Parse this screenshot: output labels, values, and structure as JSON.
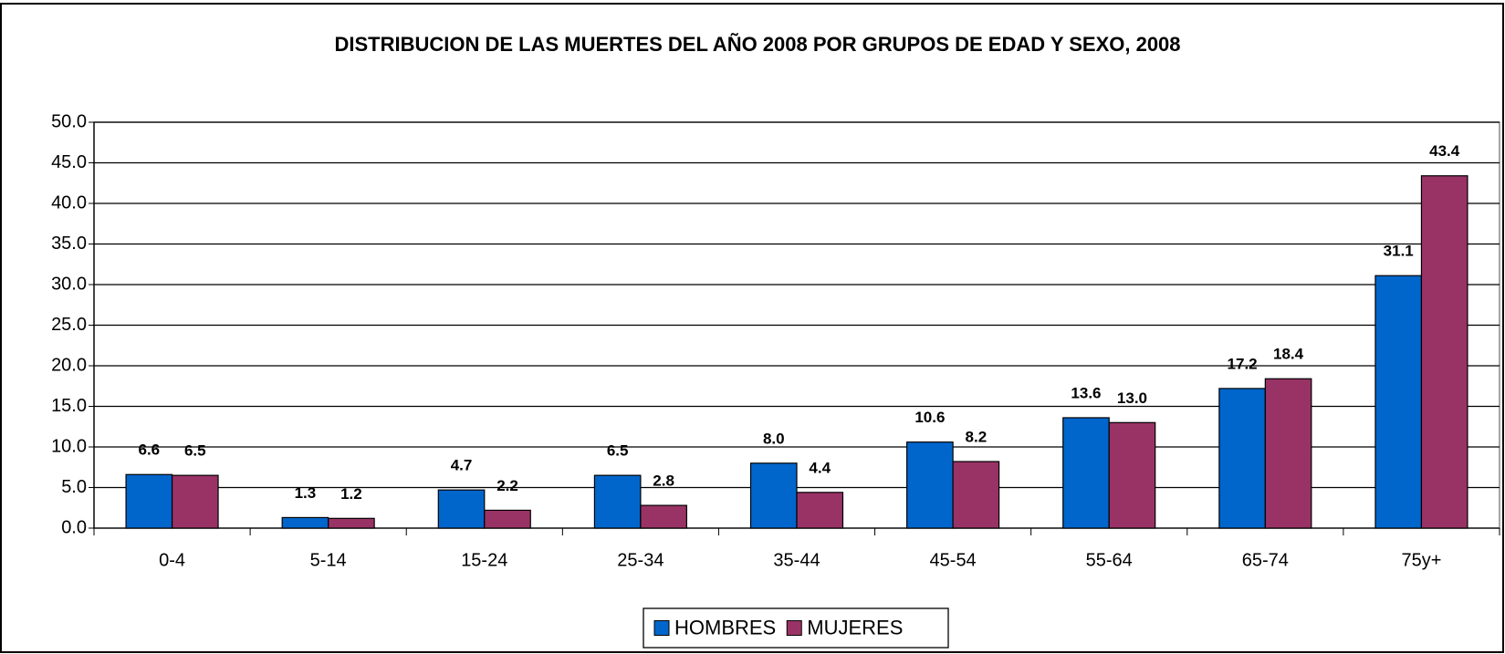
{
  "chart_data": {
    "type": "bar",
    "title": "DISTRIBUCION DE LAS MUERTES DEL AÑO 2008 POR GRUPOS DE EDAD Y SEXO, 2008",
    "categories": [
      "0-4",
      "5-14",
      "15-24",
      "25-34",
      "35-44",
      "45-54",
      "55-64",
      "65-74",
      "75y+"
    ],
    "series": [
      {
        "name": "HOMBRES",
        "color": "#0066cc",
        "values": [
          6.6,
          1.3,
          4.7,
          6.5,
          8,
          10.6,
          13.6,
          17.2,
          31.1
        ],
        "value_labels": [
          "6.6",
          "1.3",
          "4.7",
          "6.5",
          "8.0",
          "10.6",
          "13.6",
          "17.2",
          "31.1"
        ]
      },
      {
        "name": "MUJERES",
        "color": "#993366",
        "values": [
          6.5,
          1.2,
          2.2,
          2.8,
          4.4,
          8.2,
          13,
          18.4,
          43.4
        ],
        "value_labels": [
          "6.5",
          "1.2",
          "2.2",
          "2.8",
          "4.4",
          "8.2",
          "13.0",
          "18.4",
          "43.4"
        ]
      }
    ],
    "ylim": [
      0,
      50
    ],
    "yticks": [
      {
        "value": 0,
        "label": "0.0"
      },
      {
        "value": 5,
        "label": "5.0"
      },
      {
        "value": 10,
        "label": "10.0"
      },
      {
        "value": 15,
        "label": "15.0"
      },
      {
        "value": 20,
        "label": "20.0"
      },
      {
        "value": 25,
        "label": "25.0"
      },
      {
        "value": 30,
        "label": "30.0"
      },
      {
        "value": 35,
        "label": "35.0"
      },
      {
        "value": 40,
        "label": "40.0"
      },
      {
        "value": 45,
        "label": "45.0"
      },
      {
        "value": 50,
        "label": "50.0"
      }
    ],
    "grid": true,
    "legend": "bottom"
  }
}
